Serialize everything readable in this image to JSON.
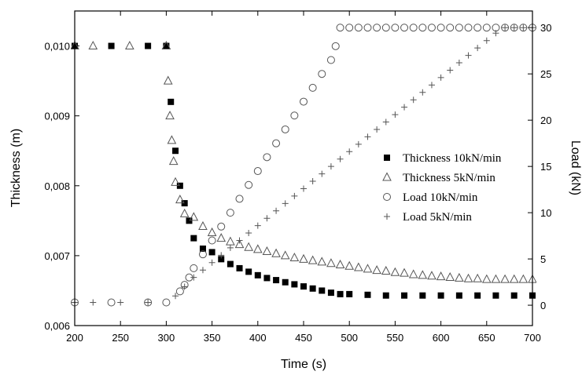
{
  "chart_data": {
    "type": "scatter",
    "xlabel": "Time (s)",
    "ylabel": "Thickness (m)",
    "y2label": "Load (kN)",
    "xlim": [
      200,
      700
    ],
    "ylim": [
      0.006,
      0.0105
    ],
    "y2lim": [
      -2.2,
      31.8
    ],
    "x_ticks": [
      "200",
      "250",
      "300",
      "350",
      "400",
      "450",
      "500",
      "550",
      "600",
      "650",
      "700"
    ],
    "y_ticks": [
      "0,006",
      "0,007",
      "0,008",
      "0,009",
      "0,010"
    ],
    "y2_ticks": [
      "0",
      "5",
      "10",
      "15",
      "20",
      "25",
      "30"
    ],
    "legend_position": "center-right",
    "series": [
      {
        "name": "Thickness 10kN/min",
        "axis": "left",
        "marker": "filled-square",
        "x": [
          200,
          240,
          280,
          300,
          305,
          310,
          315,
          320,
          325,
          330,
          340,
          350,
          360,
          370,
          380,
          390,
          400,
          410,
          420,
          430,
          440,
          450,
          460,
          470,
          480,
          490,
          500,
          520,
          540,
          560,
          580,
          600,
          620,
          640,
          660,
          680,
          700
        ],
        "y": [
          0.01,
          0.01,
          0.01,
          0.01,
          0.0092,
          0.0085,
          0.008,
          0.00775,
          0.0075,
          0.00725,
          0.0071,
          0.00705,
          0.00695,
          0.00688,
          0.00682,
          0.00677,
          0.00672,
          0.00668,
          0.00665,
          0.00662,
          0.00659,
          0.00656,
          0.00653,
          0.0065,
          0.00647,
          0.00645,
          0.00645,
          0.00644,
          0.00643,
          0.00643,
          0.00643,
          0.00643,
          0.00643,
          0.00643,
          0.00643,
          0.00643,
          0.00643
        ]
      },
      {
        "name": "Thickness  5kN/min",
        "axis": "left",
        "marker": "open-triangle",
        "x": [
          200,
          220,
          260,
          300,
          302,
          304,
          306,
          308,
          310,
          315,
          320,
          330,
          340,
          350,
          360,
          370,
          380,
          390,
          400,
          410,
          420,
          430,
          440,
          450,
          460,
          470,
          480,
          490,
          500,
          510,
          520,
          530,
          540,
          550,
          560,
          570,
          580,
          590,
          600,
          610,
          620,
          630,
          640,
          650,
          660,
          670,
          680,
          690,
          700
        ],
        "y": [
          0.01,
          0.01,
          0.01,
          0.01,
          0.0095,
          0.009,
          0.00865,
          0.00835,
          0.00805,
          0.0078,
          0.0076,
          0.00755,
          0.00742,
          0.00733,
          0.00725,
          0.0072,
          0.00716,
          0.00712,
          0.00709,
          0.00706,
          0.00703,
          0.007,
          0.00697,
          0.00695,
          0.00693,
          0.00691,
          0.00689,
          0.00687,
          0.00685,
          0.00683,
          0.00681,
          0.00679,
          0.00678,
          0.00676,
          0.00675,
          0.00673,
          0.00672,
          0.00671,
          0.0067,
          0.00669,
          0.00668,
          0.00667,
          0.00667,
          0.00666,
          0.00666,
          0.00666,
          0.00666,
          0.00666,
          0.00666
        ]
      },
      {
        "name": "Load 10kN/min",
        "axis": "right",
        "marker": "open-circle",
        "x": [
          200,
          240,
          280,
          300,
          315,
          320,
          325,
          330,
          340,
          350,
          360,
          370,
          380,
          390,
          400,
          410,
          420,
          430,
          440,
          450,
          460,
          470,
          480,
          485,
          490,
          500,
          510,
          520,
          530,
          540,
          550,
          560,
          570,
          580,
          590,
          600,
          610,
          620,
          630,
          640,
          650,
          660,
          670,
          680,
          690,
          700
        ],
        "y": [
          0.3,
          0.3,
          0.3,
          0.3,
          1.5,
          2.2,
          3.0,
          4.0,
          5.5,
          7.0,
          8.5,
          10.0,
          11.5,
          13.0,
          14.5,
          16.0,
          17.5,
          19.0,
          20.5,
          22.0,
          23.5,
          25.0,
          26.5,
          28.0,
          30.0,
          30.0,
          30.0,
          30.0,
          30.0,
          30.0,
          30.0,
          30.0,
          30.0,
          30.0,
          30.0,
          30.0,
          30.0,
          30.0,
          30.0,
          30.0,
          30.0,
          30.0,
          30.0,
          30.0,
          30.0,
          30.0
        ]
      },
      {
        "name": "Load 5kN/min",
        "axis": "right",
        "marker": "plus",
        "x": [
          200,
          220,
          250,
          280,
          310,
          320,
          330,
          340,
          350,
          360,
          370,
          380,
          390,
          400,
          410,
          420,
          430,
          440,
          450,
          460,
          470,
          480,
          490,
          500,
          510,
          520,
          530,
          540,
          550,
          560,
          570,
          580,
          590,
          600,
          610,
          620,
          630,
          640,
          650,
          660,
          670,
          680,
          690,
          700
        ],
        "y": [
          0.3,
          0.3,
          0.3,
          0.3,
          1.0,
          2.0,
          3.0,
          3.8,
          4.6,
          5.4,
          6.2,
          7.0,
          7.8,
          8.6,
          9.4,
          10.2,
          11.0,
          11.8,
          12.6,
          13.4,
          14.2,
          15.0,
          15.8,
          16.6,
          17.4,
          18.2,
          19.0,
          19.8,
          20.6,
          21.4,
          22.2,
          23.0,
          23.8,
          24.6,
          25.4,
          26.2,
          27.0,
          27.8,
          28.6,
          29.4,
          30.0,
          30.0,
          30.0,
          30.0
        ]
      }
    ]
  }
}
